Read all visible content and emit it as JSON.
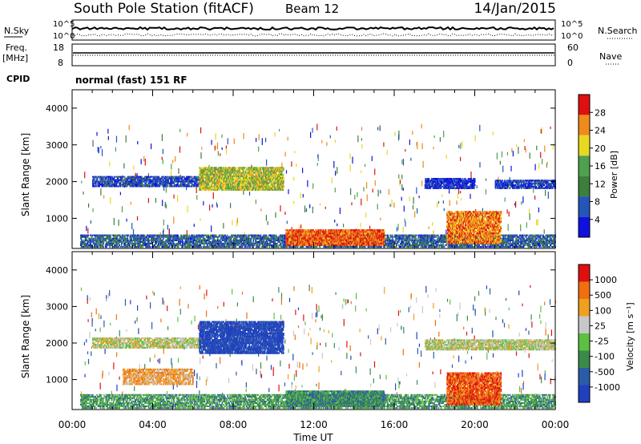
{
  "header": {
    "station": "South Pole Station (fitACF)",
    "beam": "Beam 12",
    "date": "14/Jan/2015"
  },
  "sky_panel": {
    "left_label": "N.Sky",
    "left_ticks": [
      "10^5",
      "10^0"
    ],
    "right_label": "N.Search",
    "right_ticks": [
      "10^5",
      "10^0"
    ]
  },
  "freq_panel": {
    "left_label_1": "Freq.",
    "left_label_2": "[MHz]",
    "left_ticks": [
      "18",
      "8"
    ],
    "right_label": "Nave",
    "right_ticks": [
      "60",
      "0"
    ]
  },
  "cpid": {
    "label": "CPID",
    "value": "normal (fast) 151 RF"
  },
  "chart_data": [
    {
      "type": "heatmap",
      "quantity": "Power",
      "ylabel": "Slant Range [km]",
      "xlabel": "Time UT",
      "ylim": [
        180,
        4500
      ],
      "xlim": [
        "00:00",
        "24:00"
      ],
      "x_ticks": [
        "00:00",
        "04:00",
        "08:00",
        "12:00",
        "16:00",
        "20:00",
        "00:00"
      ],
      "y_ticks": [
        1000,
        2000,
        3000,
        4000
      ],
      "colorbar": {
        "label": "Power [dB]",
        "ticks": [
          "4",
          "8",
          "12",
          "16",
          "20",
          "24",
          "28"
        ],
        "colors": [
          "#1010e0",
          "#2455b8",
          "#3c7f3c",
          "#4fa04f",
          "#e8d820",
          "#f08a1c",
          "#e01010"
        ]
      },
      "regions": [
        {
          "t0": 0.4,
          "t1": 24.0,
          "r0": 200,
          "r1": 560,
          "level": 0.25,
          "density": 0.55
        },
        {
          "t0": 1.0,
          "t1": 6.5,
          "r0": 1850,
          "r1": 2150,
          "level": 0.18,
          "density": 0.6
        },
        {
          "t0": 6.3,
          "t1": 10.5,
          "r0": 1750,
          "r1": 2400,
          "level": 0.6,
          "density": 0.7
        },
        {
          "t0": 10.6,
          "t1": 15.5,
          "r0": 250,
          "r1": 700,
          "level": 0.85,
          "density": 0.8
        },
        {
          "t0": 18.6,
          "t1": 21.3,
          "r0": 300,
          "r1": 1200,
          "level": 0.8,
          "density": 0.7
        },
        {
          "t0": 17.5,
          "t1": 20.0,
          "r0": 1800,
          "r1": 2100,
          "level": 0.12,
          "density": 0.65
        },
        {
          "t0": 21.0,
          "t1": 24.0,
          "r0": 1800,
          "r1": 2050,
          "level": 0.15,
          "density": 0.6
        }
      ]
    },
    {
      "type": "heatmap",
      "quantity": "Velocity",
      "ylabel": "Slant Range [km]",
      "xlabel": "Time UT",
      "ylim": [
        180,
        4500
      ],
      "xlim": [
        "00:00",
        "24:00"
      ],
      "x_ticks": [
        "00:00",
        "04:00",
        "08:00",
        "12:00",
        "16:00",
        "20:00",
        "00:00"
      ],
      "y_ticks": [
        1000,
        2000,
        3000,
        4000
      ],
      "colorbar": {
        "label": "Velocity [m s⁻¹]",
        "ticks": [
          "1000",
          "500",
          "100",
          "25",
          "-25",
          "-100",
          "-500",
          "-1000"
        ],
        "colors": [
          "#2040c0",
          "#2b5ca8",
          "#3c8a4a",
          "#5cc040",
          "#c8c8c8",
          "#f0a020",
          "#f07010",
          "#e01010"
        ]
      },
      "regions": [
        {
          "t0": 0.4,
          "t1": 24.0,
          "r0": 200,
          "r1": 600,
          "level": 0.35,
          "density": 0.55
        },
        {
          "t0": 1.0,
          "t1": 6.5,
          "r0": 1850,
          "r1": 2150,
          "level": 0.55,
          "density": 0.6
        },
        {
          "t0": 6.3,
          "t1": 10.5,
          "r0": 1700,
          "r1": 2600,
          "level": 0.05,
          "density": 0.7
        },
        {
          "t0": 2.5,
          "t1": 6.0,
          "r0": 850,
          "r1": 1300,
          "level": 0.7,
          "density": 0.55
        },
        {
          "t0": 10.6,
          "t1": 15.5,
          "r0": 250,
          "r1": 700,
          "level": 0.3,
          "density": 0.8
        },
        {
          "t0": 18.6,
          "t1": 21.3,
          "r0": 300,
          "r1": 1200,
          "level": 0.85,
          "density": 0.7
        },
        {
          "t0": 17.5,
          "t1": 24.0,
          "r0": 1800,
          "r1": 2100,
          "level": 0.55,
          "density": 0.65
        }
      ]
    }
  ]
}
